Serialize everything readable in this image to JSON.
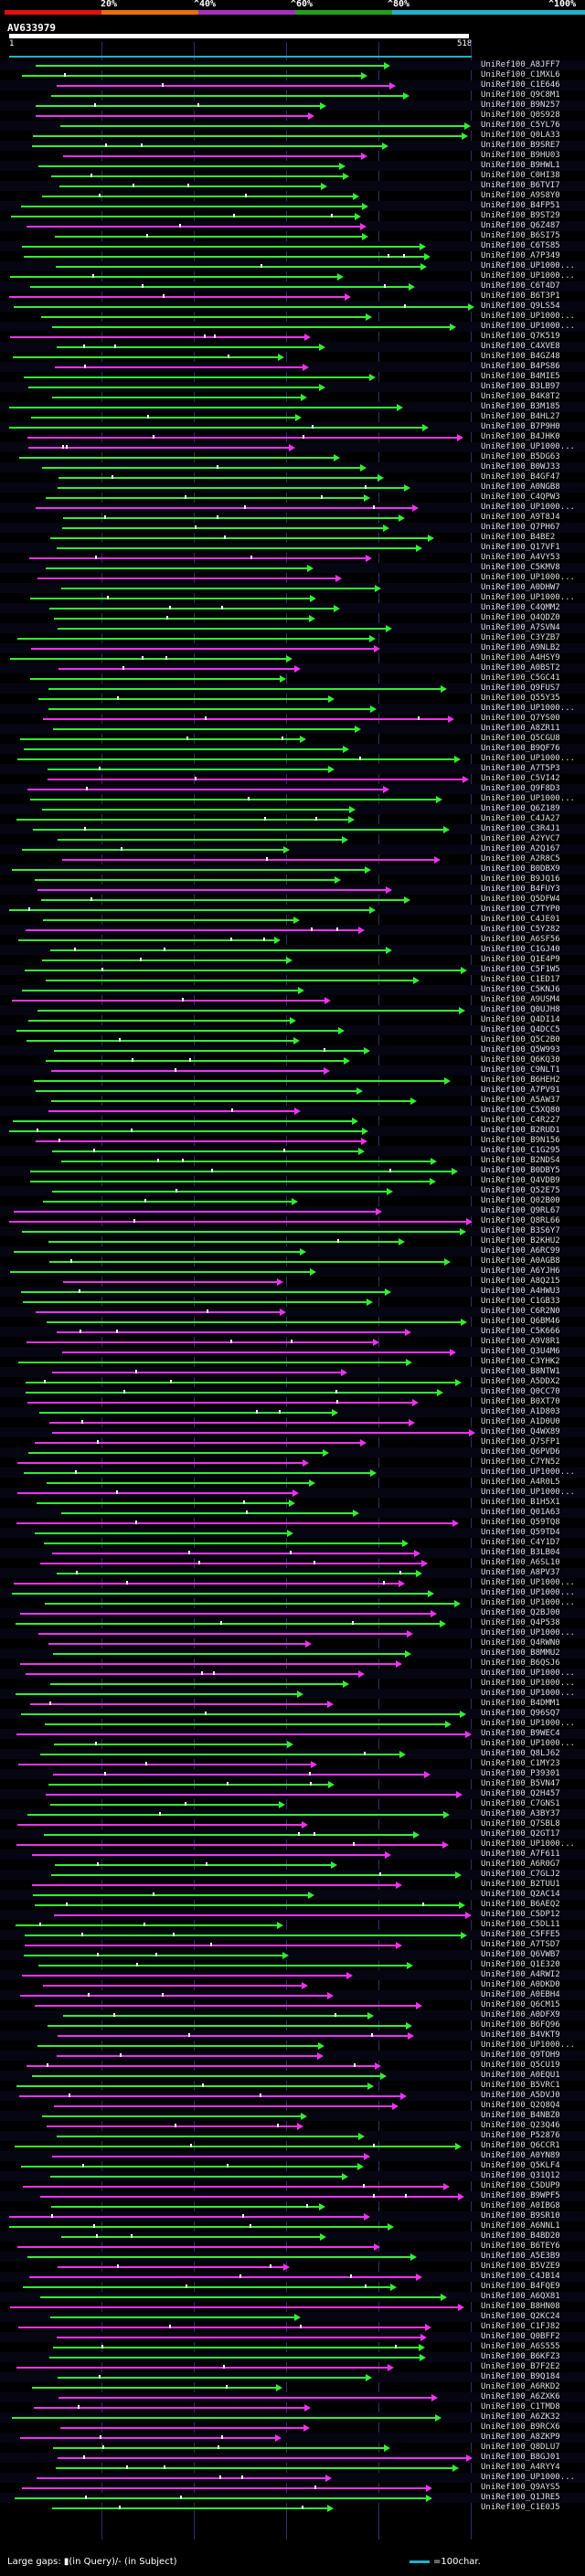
{
  "scale": {
    "ticks": [
      "20%",
      "^40%",
      "^60%",
      "^80%",
      "^100%"
    ],
    "colors": [
      "#e01010",
      "#e87010",
      "#a030c0",
      "#20a020",
      "#20b0c8"
    ]
  },
  "query": {
    "id": "AV633979",
    "start": "1",
    "end": "518"
  },
  "colors": {
    "green": "#33ee33",
    "magenta": "#ee33ee",
    "cyan": "#20b0c8"
  },
  "hits": [
    "UniRef100_A8JFF7",
    "UniRef100_C1MXL6",
    "UniRef100_C1E646",
    "UniRef100_Q9C8M1",
    "UniRef100_B9N257",
    "UniRef100_Q0S928",
    "UniRef100_C5YL76",
    "UniRef100_Q0LA33",
    "UniRef100_B9SRE7",
    "UniRef100_B9HU03",
    "UniRef100_B9HWL1",
    "UniRef100_C0HI38",
    "UniRef100_B6TVI7",
    "UniRef100_A9S8Y0",
    "UniRef100_B4FP51",
    "UniRef100_B9ST29",
    "UniRef100_Q6Z487",
    "UniRef100_B6SI75",
    "UniRef100_C6TS85",
    "UniRef100_A7P349",
    "UniRef100_UP1000...",
    "UniRef100_UP1000...",
    "UniRef100_C6T4D7",
    "UniRef100_B6T3P1",
    "UniRef100_Q9LS54",
    "UniRef100_UP1000...",
    "UniRef100_UP1000...",
    "UniRef100_Q7K519",
    "UniRef100_C4XVE8",
    "UniRef100_B4GZ48",
    "UniRef100_B4PS86",
    "UniRef100_B4MIE5",
    "UniRef100_B3LB97",
    "UniRef100_B4K8T2",
    "UniRef100_B3M185",
    "UniRef100_B4HL27",
    "UniRef100_B7P9H0",
    "UniRef100_B4JHK0",
    "UniRef100_UP1000...",
    "UniRef100_B5DG63",
    "UniRef100_B0WJ33",
    "UniRef100_B4GF47",
    "UniRef100_A0NGB8",
    "UniRef100_C4QPW3",
    "UniRef100_UP1000...",
    "UniRef100_A9T8J4",
    "UniRef100_Q7PH67",
    "UniRef100_B4BE2",
    "UniRef100_Q17VF1",
    "UniRef100_A4VY53",
    "UniRef100_C5KMV8",
    "UniRef100_UP1000...",
    "UniRef100_A0DHW7",
    "UniRef100_UP1000...",
    "UniRef100_C4QMM2",
    "UniRef100_Q4QDZ0",
    "UniRef100_A7SVN4",
    "UniRef100_C3YZB7",
    "UniRef100_A9NLB2",
    "UniRef100_A4HSY9",
    "UniRef100_A0BST2",
    "UniRef100_C5GC41",
    "UniRef100_Q9FUS7",
    "UniRef100_Q55Y35",
    "UniRef100_UP1000...",
    "UniRef100_Q7YS00",
    "UniRef100_A8ZR11",
    "UniRef100_Q5CGU8",
    "UniRef100_B9QF76",
    "UniRef100_UP1000...",
    "UniRef100_A7T5P3",
    "UniRef100_C5VI42",
    "UniRef100_Q9F8D3",
    "UniRef100_UP1000...",
    "UniRef100_Q6Z189",
    "UniRef100_C4JA27",
    "UniRef100_C3R4J1",
    "UniRef100_A2YVC7",
    "UniRef100_A2Q167",
    "UniRef100_A2R8C5",
    "UniRef100_B0DBX9",
    "UniRef100_B9JQ16",
    "UniRef100_B4FUY3",
    "UniRef100_Q5DFW4",
    "UniRef100_C7TYP0",
    "UniRef100_C4JE01",
    "UniRef100_C5Y282",
    "UniRef100_A6SF56",
    "UniRef100_C1GJ40",
    "UniRef100_Q1E4P9",
    "UniRef100_C5F1W5",
    "UniRef100_C1ED17",
    "UniRef100_C5KNJ6",
    "UniRef100_A9USM4",
    "UniRef100_Q0UJH8",
    "UniRef100_Q4DI14",
    "UniRef100_Q4DCC5",
    "UniRef100_Q5C2B0",
    "UniRef100_Q5W993",
    "UniRef100_Q6KQ30",
    "UniRef100_C9NLT1",
    "UniRef100_B6HEH2",
    "UniRef100_A7PV91",
    "UniRef100_A5AW37",
    "UniRef100_C5XQ80",
    "UniRef100_C4R227",
    "UniRef100_B2RUD1",
    "UniRef100_B9N156",
    "UniRef100_C1G295",
    "UniRef100_B2NDS4",
    "UniRef100_B0DBY5",
    "UniRef100_Q4VDB9",
    "UniRef100_Q52E75",
    "UniRef100_Q02B00",
    "UniRef100_Q9RL67",
    "UniRef100_Q8RL66",
    "UniRef100_B3S6Y7",
    "UniRef100_B2KHU2",
    "UniRef100_A6RC99",
    "UniRef100_A0AGB8",
    "UniRef100_A6YJH6",
    "UniRef100_A8Q215",
    "UniRef100_A4HWU3",
    "UniRef100_C1GB33",
    "UniRef100_C6R2N0",
    "UniRef100_Q6BM46",
    "UniRef100_C5K666",
    "UniRef100_A9V8R1",
    "UniRef100_Q3U4M6",
    "UniRef100_C3YHK2",
    "UniRef100_B8NTW1",
    "UniRef100_A5DDX2",
    "UniRef100_Q0CC70",
    "UniRef100_B0XT70",
    "UniRef100_A1D803",
    "UniRef100_A1D0U0",
    "UniRef100_Q4WX89",
    "UniRef100_Q7SFP1",
    "UniRef100_Q6PVD6",
    "UniRef100_C7YN52",
    "UniRef100_UP1000...",
    "UniRef100_A4R0L5",
    "UniRef100_UP1000...",
    "UniRef100_B1H5X1",
    "UniRef100_Q01A63",
    "UniRef100_Q59TQ8",
    "UniRef100_Q59TD4",
    "UniRef100_C4Y1D7",
    "UniRef100_B3LB04",
    "UniRef100_A6SL10",
    "UniRef100_A8PV37",
    "UniRef100_UP1000...",
    "UniRef100_UP1000...",
    "UniRef100_UP1000...",
    "UniRef100_Q2BJ00",
    "UniRef100_Q4P538",
    "UniRef100_UP1000...",
    "UniRef100_Q4RWN0",
    "UniRef100_B8MMU2",
    "UniRef100_B6QSJ6",
    "UniRef100_UP1000...",
    "UniRef100_UP1000...",
    "UniRef100_UP1000...",
    "UniRef100_B4DMM1",
    "UniRef100_Q96SQ7",
    "UniRef100_UP1000...",
    "UniRef100_B9WEC4",
    "UniRef100_UP1000...",
    "UniRef100_Q8LJ62",
    "UniRef100_C1MY23",
    "UniRef100_P39301",
    "UniRef100_B5VN47",
    "UniRef100_Q2H457",
    "UniRef100_C7GNS1",
    "UniRef100_A3BY37",
    "UniRef100_Q7SBL8",
    "UniRef100_Q2GT17",
    "UniRef100_UP1000...",
    "UniRef100_A7F611",
    "UniRef100_A6R0G7",
    "UniRef100_C7GLJ2",
    "UniRef100_B2TUU1",
    "UniRef100_Q2AC14",
    "UniRef100_B6AEQ2",
    "UniRef100_C5DP12",
    "UniRef100_C5DL11",
    "UniRef100_C5FFE5",
    "UniRef100_A7TSD7",
    "UniRef100_Q6VWB7",
    "UniRef100_Q1E320",
    "UniRef100_A4RWI2",
    "UniRef100_A0DKD0",
    "UniRef100_A0EBH4",
    "UniRef100_Q6CM15",
    "UniRef100_A0DFX9",
    "UniRef100_B6FQ96",
    "UniRef100_B4VKT9",
    "UniRef100_UP1000...",
    "UniRef100_Q9TOH9",
    "UniRef100_Q5CU19",
    "UniRef100_A0EQU1",
    "UniRef100_B5VRC1",
    "UniRef100_A5DVJ0",
    "UniRef100_Q2Q8Q4",
    "UniRef100_B4NBZ0",
    "UniRef100_Q23Q46",
    "UniRef100_P52876",
    "UniRef100_Q6CCR1",
    "UniRef100_A0YN89",
    "UniRef100_Q5KLF4",
    "UniRef100_Q31Q12",
    "UniRef100_C5DUP9",
    "UniRef100_B9WPF5",
    "UniRef100_A0IBG8",
    "UniRef100_B9SR10",
    "UniRef100_A6NNL1",
    "UniRef100_B4BD20",
    "UniRef100_B6TEY6",
    "UniRef100_A5E3B9",
    "UniRef100_B5VZE9",
    "UniRef100_C4JB14",
    "UniRef100_B4FQE9",
    "UniRef100_A6QX81",
    "UniRef100_B8HN08",
    "UniRef100_Q2KC24",
    "UniRef100_C1FJ82",
    "UniRef100_Q0BFF2",
    "UniRef100_A6S555",
    "UniRef100_B6KFZ3",
    "UniRef100_B7F2E2",
    "UniRef100_B9Q184",
    "UniRef100_A6RKD2",
    "UniRef100_A6ZXK6",
    "UniRef100_C1TMD8",
    "UniRef100_A6ZK32",
    "UniRef100_B9RCX6",
    "UniRef100_A8ZKP9",
    "UniRef100_Q8DLU7",
    "UniRef100_B8GJ01",
    "UniRef100_A4RYY4",
    "UniRef100_UP1000...",
    "UniRef100_Q9AYS5",
    "UniRef100_Q1JRE5",
    "UniRef100_C1E0J5"
  ],
  "footer": {
    "text": "Large gaps: ▮(in Query)/- (in Subject)"
  },
  "legend": {
    "text": "=100char."
  }
}
